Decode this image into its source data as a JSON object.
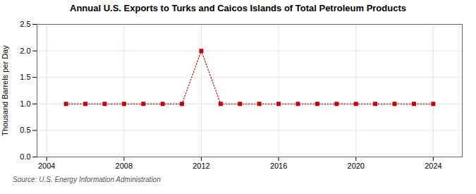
{
  "chart_data": {
    "type": "line",
    "title": "Annual U.S. Exports to Turks and Caicos Islands of Total Petroleum Products",
    "ylabel": "Thousand Barrels per Day",
    "source": "Source: U.S. Energy Information Administration",
    "x": [
      2005,
      2006,
      2007,
      2008,
      2009,
      2010,
      2011,
      2012,
      2013,
      2014,
      2015,
      2016,
      2017,
      2018,
      2019,
      2020,
      2021,
      2022,
      2023,
      2024
    ],
    "values": [
      1.0,
      1.0,
      1.0,
      1.0,
      1.0,
      1.0,
      1.0,
      2.0,
      1.0,
      1.0,
      1.0,
      1.0,
      1.0,
      1.0,
      1.0,
      1.0,
      1.0,
      1.0,
      1.0,
      1.0
    ],
    "color": "#cc0000",
    "marker": "square",
    "line_style": "dotted",
    "xlim": [
      2003.5,
      2025.5
    ],
    "xticks": [
      2004,
      2008,
      2012,
      2016,
      2020,
      2024
    ],
    "ylim": [
      0.0,
      2.5
    ],
    "yticks": [
      {
        "value": 0.0,
        "label": "0.0"
      },
      0.5,
      {
        "value": 1.0,
        "label": "1.0"
      },
      1.5,
      {
        "value": 2.0,
        "label": "2.0"
      },
      2.5
    ],
    "grid": true
  }
}
